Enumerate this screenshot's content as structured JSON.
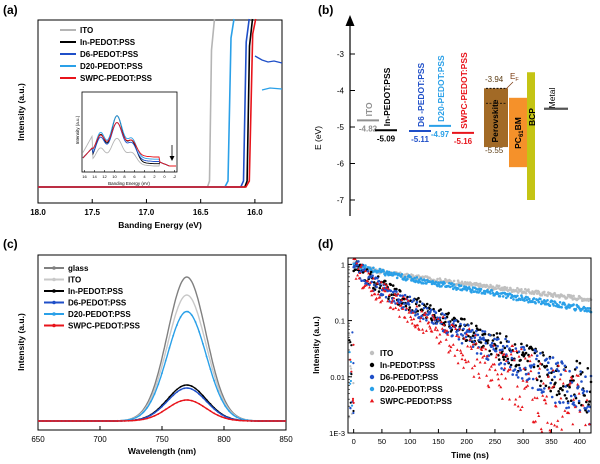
{
  "chart_data": [
    {
      "panel": "(a)",
      "type": "line",
      "xlabel": "Banding Energy (eV)",
      "ylabel": "Intensity (a.u.)",
      "xlim": [
        18.0,
        15.75
      ],
      "x_ticks": [
        "18.0",
        "17.5",
        "17.0",
        "16.5",
        "16.0"
      ],
      "series": [
        {
          "name": "ITO",
          "color": "#b5b5b5",
          "cutoff": 16.4
        },
        {
          "name": "In-PEDOT:PSS",
          "color": "#000000",
          "cutoff": 16.05
        },
        {
          "name": "D6-PEDOT:PSS",
          "color": "#1f4fc8",
          "cutoff": 16.08
        },
        {
          "name": "D20-PEDOT:PSS",
          "color": "#2aa0e8",
          "cutoff": 16.22
        },
        {
          "name": "SWPC-PEDOT:PSS",
          "color": "#e8141b",
          "cutoff": 16.02
        }
      ],
      "inset": {
        "xlabel": "Banding Energy (eV)",
        "ylabel": "Intensity (a.u.)",
        "x_ticks": [
          "16",
          "14",
          "12",
          "10",
          "8",
          "6",
          "4",
          "2",
          "0",
          "-2"
        ],
        "peak_ev": 9.5
      }
    },
    {
      "panel": "(b)",
      "type": "other",
      "ylabel": "E (eV)",
      "y_ticks": [
        "-3",
        "-4",
        "-5",
        "-6",
        "-7"
      ],
      "levels": [
        {
          "name": "ITO",
          "value": "-4.82",
          "color": "#909090"
        },
        {
          "name": "In-PEDOT:PSS",
          "value": "-5.09",
          "color": "#000000"
        },
        {
          "name": "D6 -PEDOT:PSS",
          "value": "-5.11",
          "color": "#1f4fc8"
        },
        {
          "name": "D20-PEDOT:PSS",
          "value": "-4.97",
          "color": "#2aa0e8"
        },
        {
          "name": "SWPC-PEDOT:PSS",
          "value": "-5.16",
          "color": "#e8141b"
        }
      ],
      "blocks": [
        {
          "name": "Perovskite",
          "top": -3.94,
          "bottom": -5.55,
          "color": "#a26a26"
        },
        {
          "name": "PC61BM",
          "top": -4.2,
          "bottom": -6.1,
          "color": "#f5912a"
        },
        {
          "name": "BCP",
          "top": -3.5,
          "bottom": -7.0,
          "color": "#c4c414"
        },
        {
          "name": "Metal",
          "value": -4.5,
          "color": "#555555"
        }
      ],
      "labels": {
        "lumo": "-3.94",
        "homo": "-5.55",
        "ef": "E",
        "ef_sub": "F",
        "pcbm": "PC",
        "pcbm_sub": "61",
        "pcbm_rest": "BM"
      }
    },
    {
      "panel": "(c)",
      "type": "line",
      "xlabel": "Wavelength (nm)",
      "ylabel": "Intensity (a.u.)",
      "xlim": [
        650,
        850
      ],
      "x_ticks": [
        "650",
        "700",
        "750",
        "800",
        "850"
      ],
      "series": [
        {
          "name": "glass",
          "color": "#808080",
          "peak": 770,
          "amplitude": 0.96,
          "width": 22
        },
        {
          "name": "ITO",
          "color": "#c8c8c8",
          "peak": 770,
          "amplitude": 0.84,
          "width": 22
        },
        {
          "name": "In-PEDOT:PSS",
          "color": "#000000",
          "peak": 770,
          "amplitude": 0.24,
          "width": 22
        },
        {
          "name": "D6-PEDOT:PSS",
          "color": "#1f4fc8",
          "peak": 770,
          "amplitude": 0.22,
          "width": 22
        },
        {
          "name": "D20-PEDOT:PSS",
          "color": "#2aa0e8",
          "peak": 770,
          "amplitude": 0.73,
          "width": 22
        },
        {
          "name": "SWPC-PEDOT:PSS",
          "color": "#e8141b",
          "peak": 770,
          "amplitude": 0.14,
          "width": 22
        }
      ]
    },
    {
      "panel": "(d)",
      "type": "scatter",
      "xlabel": "Time (ns)",
      "ylabel": "Intensity (a.u.)",
      "xlim": [
        -10,
        420
      ],
      "ylim": [
        0.001,
        1.3
      ],
      "y_scale": "log",
      "x_ticks": [
        "0",
        "50",
        "100",
        "150",
        "200",
        "250",
        "300",
        "350",
        "400"
      ],
      "y_ticks": [
        "1E-3",
        "0.01",
        "0.1",
        "1"
      ],
      "series": [
        {
          "name": "ITO",
          "color": "#c0c0c0",
          "marker": "circle",
          "tau1_ns": 36,
          "tau2_ns": 345,
          "frac_fast": 0.2,
          "noise_decades": 0.04
        },
        {
          "name": "In-PEDOT:PSS",
          "color": "#000000",
          "marker": "circle",
          "tau1_ns": 20,
          "tau2_ns": 88,
          "frac_fast": 0.35,
          "noise_decades": 0.15
        },
        {
          "name": "D6-PEDOT:PSS",
          "color": "#1f4fc8",
          "marker": "circle",
          "tau1_ns": 20,
          "tau2_ns": 83,
          "frac_fast": 0.38,
          "noise_decades": 0.15
        },
        {
          "name": "D20-PEDOT:PSS",
          "color": "#2aa0e8",
          "marker": "circle",
          "tau1_ns": 40,
          "tau2_ns": 250,
          "frac_fast": 0.18,
          "noise_decades": 0.05
        },
        {
          "name": "SWPC-PEDOT:PSS",
          "color": "#e8141b",
          "marker": "triangle",
          "tau1_ns": 14,
          "tau2_ns": 68,
          "frac_fast": 0.4,
          "noise_decades": 0.22
        }
      ]
    }
  ]
}
